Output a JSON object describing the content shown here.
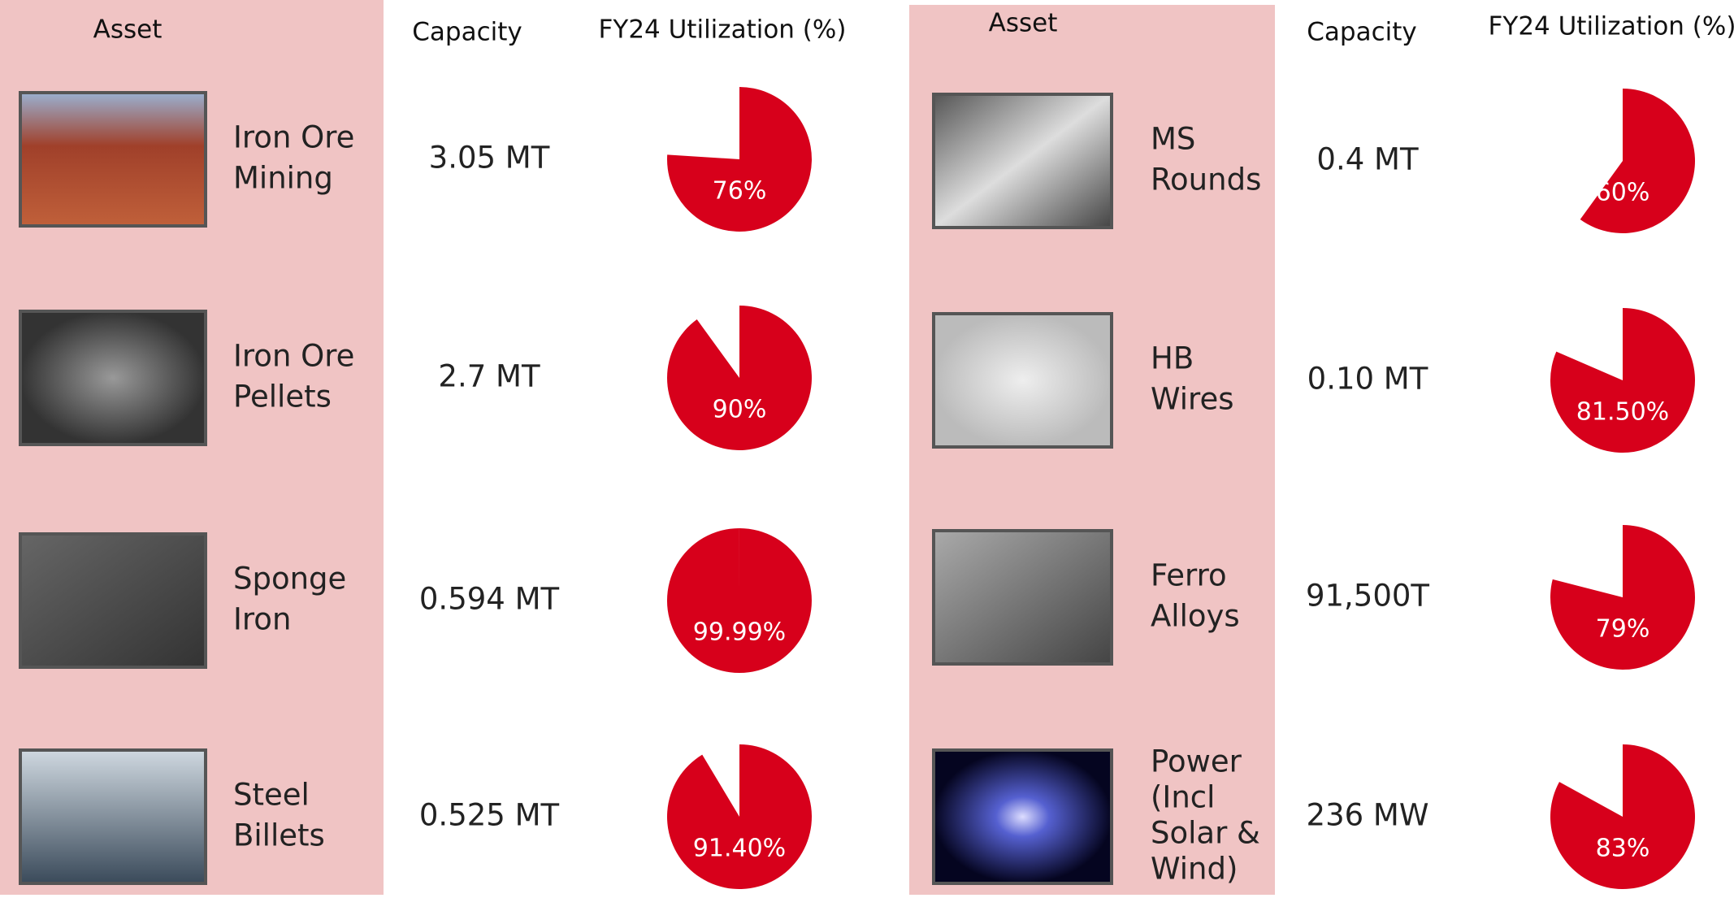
{
  "panels": [
    {
      "headers": {
        "asset": "Asset",
        "capacity": "Capacity",
        "utilization": "FY24 Utilization (%)"
      },
      "rows": [
        {
          "asset": [
            "Iron Ore",
            "Mining"
          ],
          "capacity": "3.05 MT",
          "utilization": 76,
          "utilization_label": "76%"
        },
        {
          "asset": [
            "Iron Ore",
            "Pellets"
          ],
          "capacity": "2.7 MT",
          "utilization": 90,
          "utilization_label": "90%"
        },
        {
          "asset": [
            "Sponge",
            "Iron"
          ],
          "capacity": "0.594 MT",
          "utilization": 99.99,
          "utilization_label": "99.99%"
        },
        {
          "asset": [
            "Steel",
            "Billets"
          ],
          "capacity": "0.525 MT",
          "utilization": 91.4,
          "utilization_label": "91.40%"
        }
      ]
    },
    {
      "headers": {
        "asset": "Asset",
        "capacity": "Capacity",
        "utilization": "FY24 Utilization (%)"
      },
      "rows": [
        {
          "asset": [
            "MS",
            "Rounds"
          ],
          "capacity": "0.4 MT",
          "utilization": 60,
          "utilization_label": "60%"
        },
        {
          "asset": [
            "HB",
            "Wires"
          ],
          "capacity": "0.10 MT",
          "utilization": 81.5,
          "utilization_label": "81.50%"
        },
        {
          "asset": [
            "Ferro",
            "Alloys"
          ],
          "capacity": "91,500T",
          "utilization": 79,
          "utilization_label": "79%"
        },
        {
          "asset": [
            "Power",
            "(Incl",
            "Solar &",
            "Wind)"
          ],
          "capacity": "236 MW",
          "utilization": 83,
          "utilization_label": "83%"
        }
      ]
    }
  ]
}
